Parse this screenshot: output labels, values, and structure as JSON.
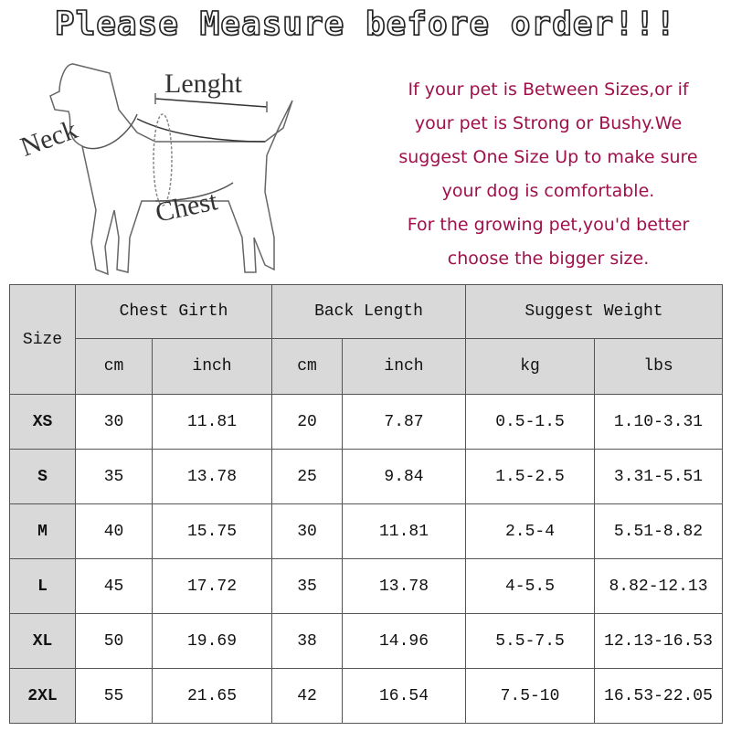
{
  "title": "Please Measure before order!!!",
  "diagram": {
    "neck": "Neck",
    "length": "Lenght",
    "chest": "Chest"
  },
  "note": [
    "If your pet is Between Sizes,or if",
    "your pet is Strong or Bushy.We",
    "suggest One Size Up to make sure",
    "your dog is comfortable.",
    "For the growing pet,you'd better",
    "choose the bigger size."
  ],
  "table": {
    "size_header": "Size",
    "groups": [
      "Chest Girth",
      "Back Length",
      "Suggest Weight"
    ],
    "units": [
      "cm",
      "inch",
      "cm",
      "inch",
      "kg",
      "lbs"
    ],
    "rows": [
      [
        "XS",
        "30",
        "11.81",
        "20",
        "7.87",
        "0.5-1.5",
        "1.10-3.31"
      ],
      [
        "S",
        "35",
        "13.78",
        "25",
        "9.84",
        "1.5-2.5",
        "3.31-5.51"
      ],
      [
        "M",
        "40",
        "15.75",
        "30",
        "11.81",
        "2.5-4",
        "5.51-8.82"
      ],
      [
        "L",
        "45",
        "17.72",
        "35",
        "13.78",
        "4-5.5",
        "8.82-12.13"
      ],
      [
        "XL",
        "50",
        "19.69",
        "38",
        "14.96",
        "5.5-7.5",
        "12.13-16.53"
      ],
      [
        "2XL",
        "55",
        "21.65",
        "42",
        "16.54",
        "7.5-10",
        "16.53-22.05"
      ]
    ]
  },
  "colors": {
    "note": "#a0104a",
    "header_bg": "#d9d9d9"
  }
}
